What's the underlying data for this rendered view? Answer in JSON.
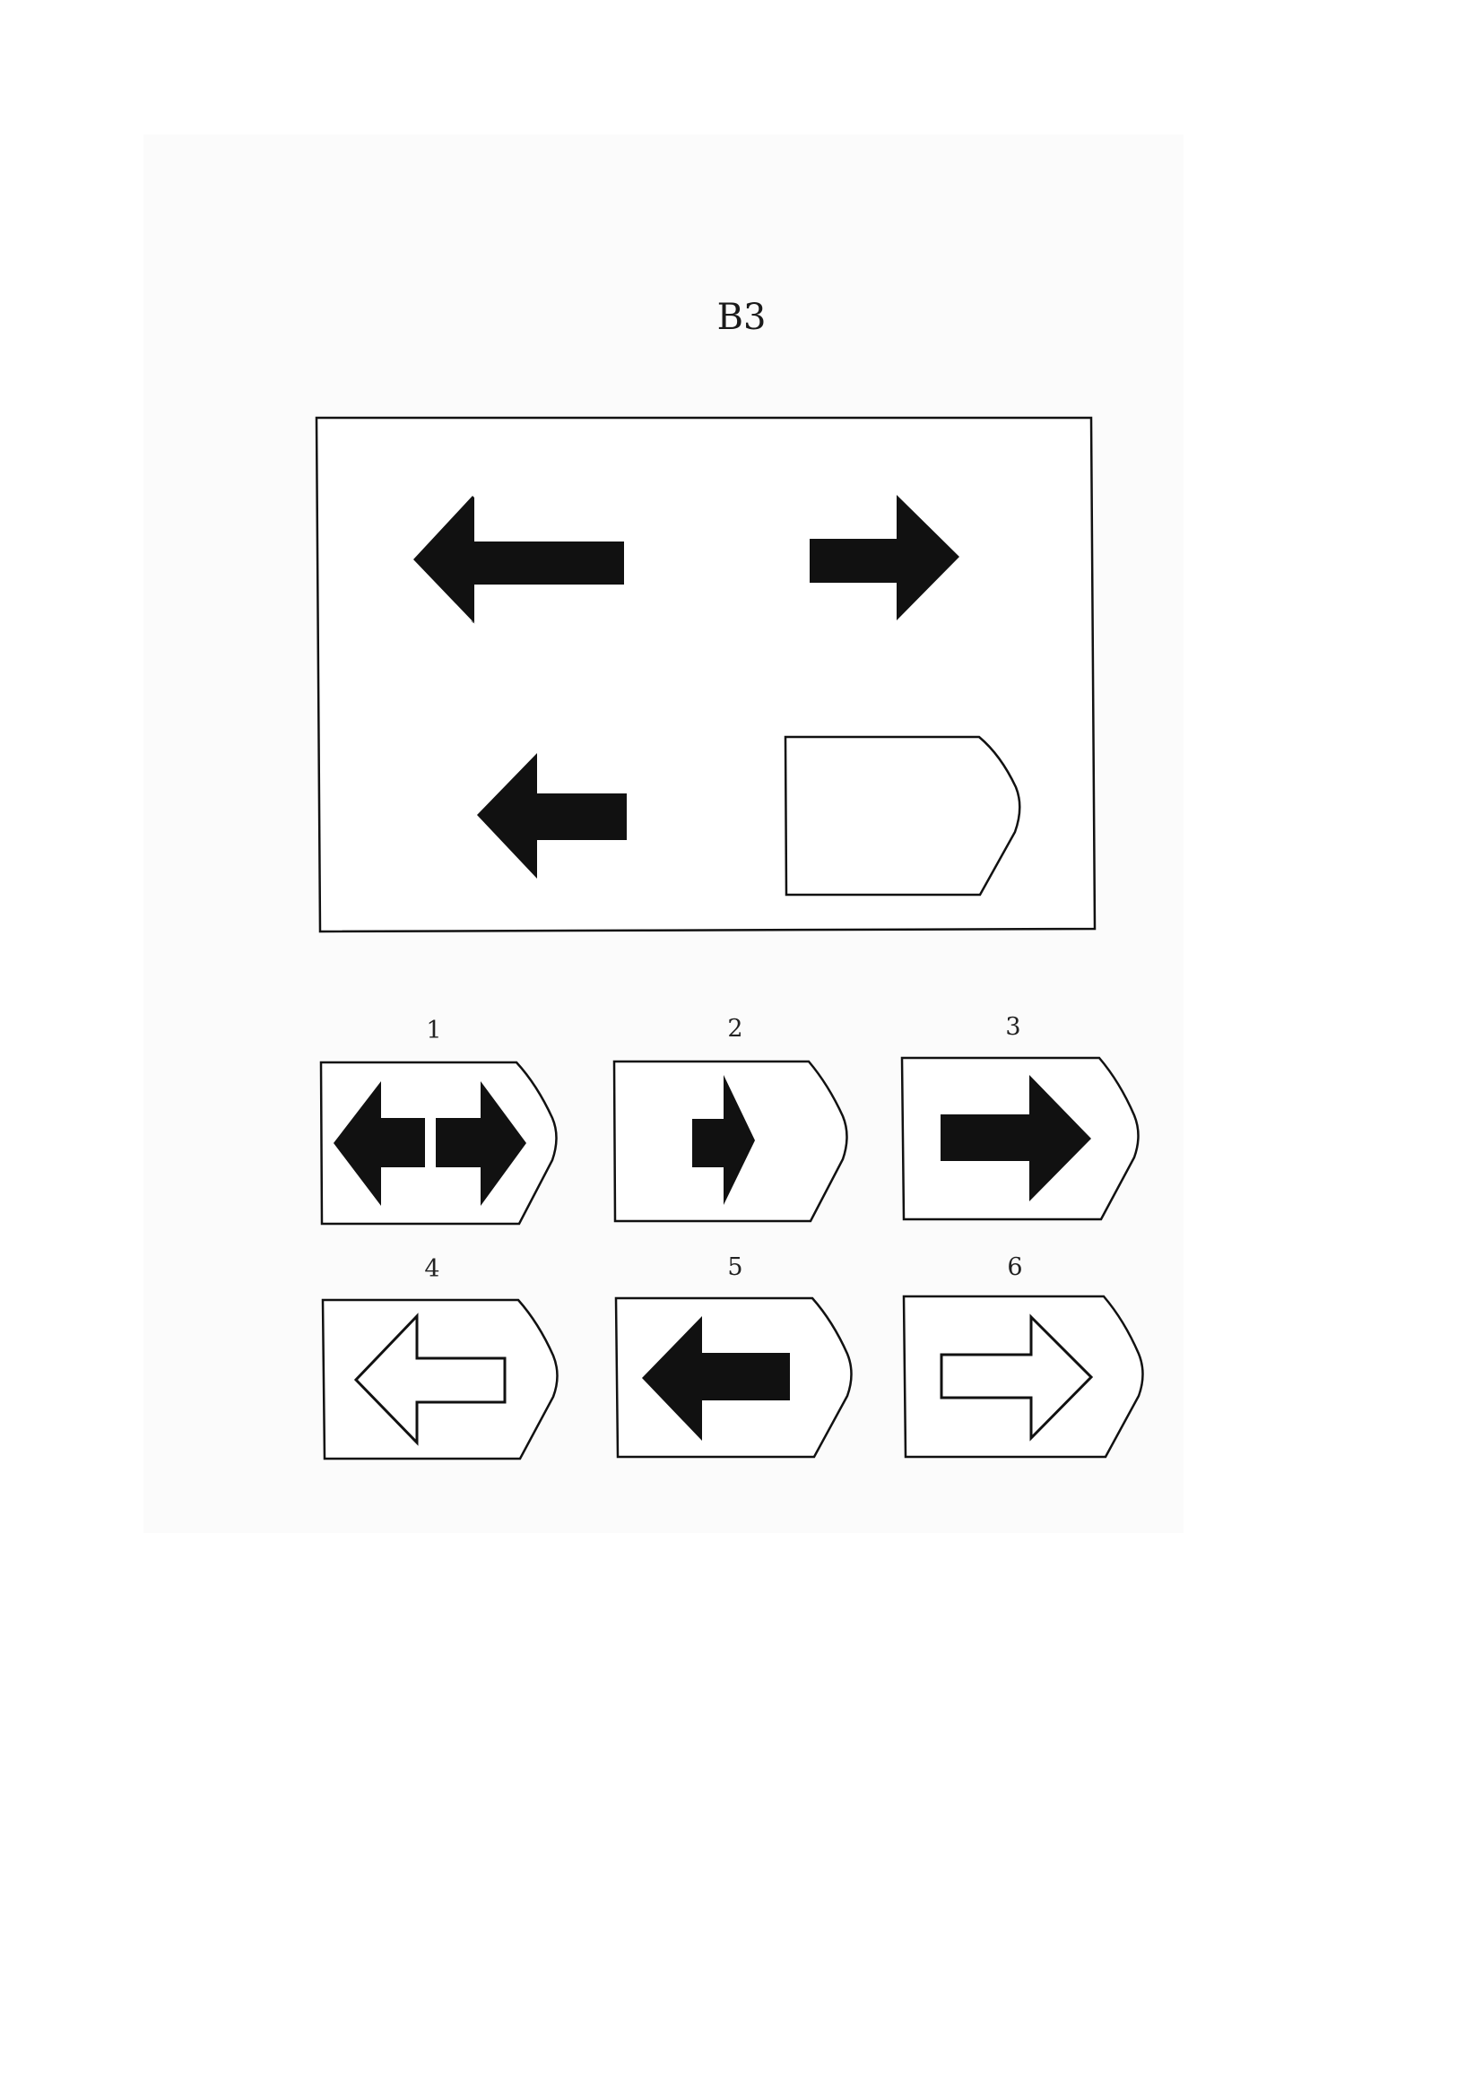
{
  "page": {
    "title": "B3"
  },
  "matrix": {
    "cells": [
      {
        "position": "top-left",
        "shape": "arrow",
        "direction": "left",
        "fill": "black"
      },
      {
        "position": "top-right",
        "shape": "arrow",
        "direction": "right",
        "fill": "black"
      },
      {
        "position": "bottom-left",
        "shape": "arrow",
        "direction": "left",
        "fill": "black"
      },
      {
        "position": "bottom-right",
        "shape": "missing-piece",
        "content": "empty"
      }
    ]
  },
  "options": [
    {
      "number": "1",
      "content": "double-arrow",
      "fill": "black"
    },
    {
      "number": "2",
      "content": "small-arrow-right",
      "fill": "black"
    },
    {
      "number": "3",
      "content": "arrow-right",
      "fill": "black"
    },
    {
      "number": "4",
      "content": "arrow-left",
      "fill": "white-outline"
    },
    {
      "number": "5",
      "content": "arrow-left",
      "fill": "black"
    },
    {
      "number": "6",
      "content": "arrow-right",
      "fill": "white-outline"
    }
  ],
  "colors": {
    "ink": "#111111",
    "paper": "#ffffff"
  }
}
